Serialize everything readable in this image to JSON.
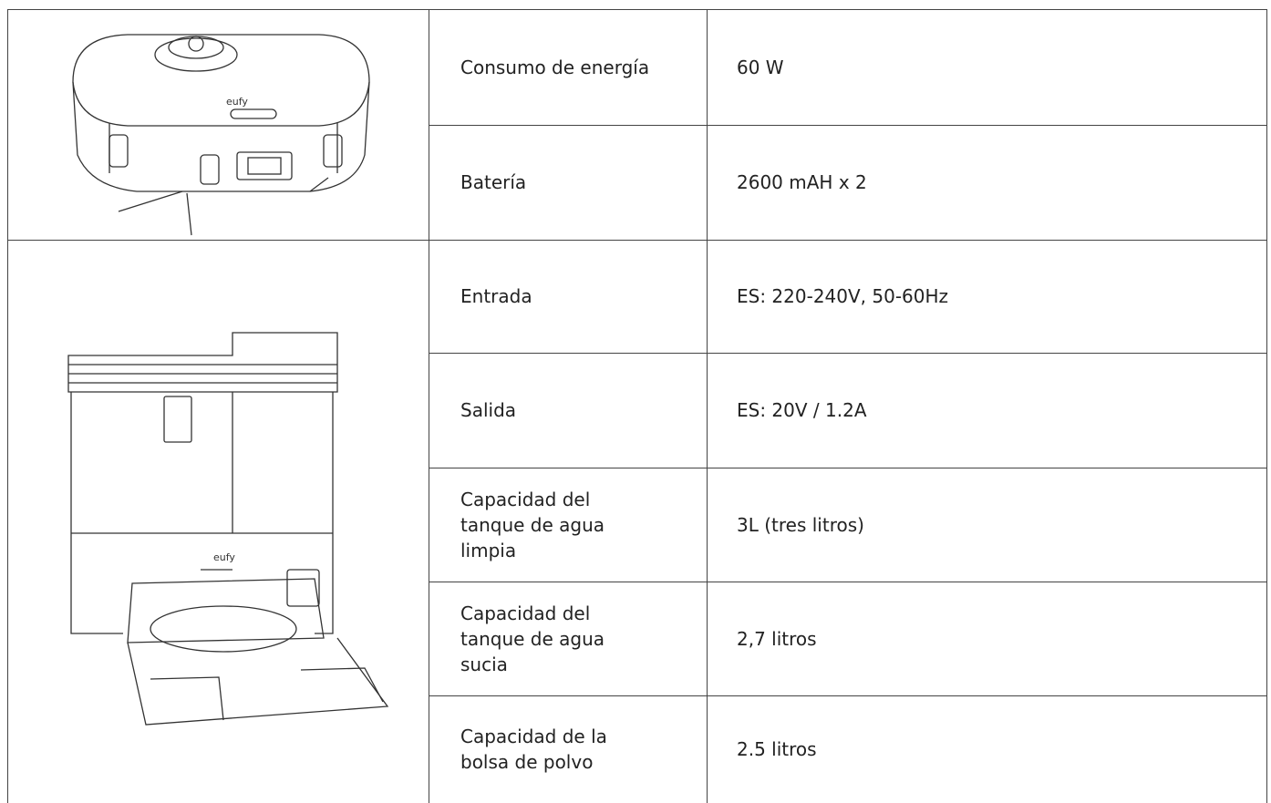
{
  "illustrations": {
    "robot_brand": "eufy",
    "station_brand": "eufy"
  },
  "table": {
    "rows": [
      {
        "label": [
          "Consumo de energía"
        ],
        "value": "60 W"
      },
      {
        "label": [
          "Batería"
        ],
        "value": "2600 mAH x 2"
      },
      {
        "label": [
          "Entrada"
        ],
        "value": "ES: 220-240V, 50-60Hz"
      },
      {
        "label": [
          "Salida"
        ],
        "value": "ES: 20V / 1.2A"
      },
      {
        "label": [
          "Capacidad del",
          "tanque de agua",
          "limpia"
        ],
        "value": "3L (tres litros)"
      },
      {
        "label": [
          "Capacidad del",
          "tanque de agua",
          "sucia"
        ],
        "value": "2,7 litros"
      },
      {
        "label": [
          "Capacidad de la",
          "bolsa de polvo"
        ],
        "value": "2.5 litros"
      }
    ]
  }
}
